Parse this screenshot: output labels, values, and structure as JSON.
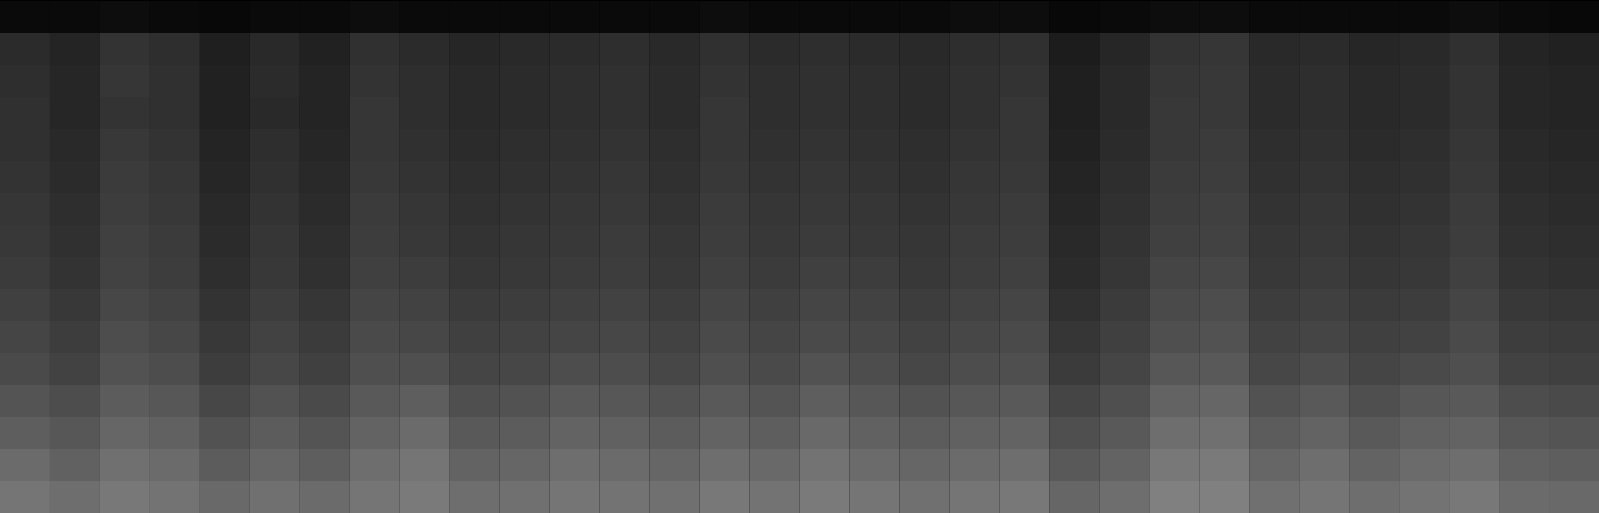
{
  "chart_data": {
    "type": "heatmap",
    "tick_labels": false,
    "zlim": [
      0,
      100
    ],
    "cells": [
      [
        4,
        4,
        5,
        4,
        3,
        4,
        4,
        5,
        4,
        4,
        4,
        4,
        4,
        4,
        5,
        4,
        4,
        4,
        4,
        5,
        5,
        3,
        4,
        5,
        5,
        4,
        4,
        4,
        4,
        5,
        4,
        3
      ],
      [
        17,
        14,
        20,
        18,
        12,
        16,
        13,
        19,
        17,
        15,
        16,
        17,
        18,
        16,
        19,
        17,
        18,
        17,
        16,
        18,
        19,
        11,
        15,
        20,
        21,
        16,
        17,
        15,
        16,
        19,
        14,
        13
      ],
      [
        18,
        15,
        21,
        19,
        13,
        17,
        14,
        20,
        18,
        16,
        17,
        18,
        19,
        17,
        20,
        18,
        19,
        18,
        17,
        19,
        20,
        12,
        16,
        21,
        22,
        17,
        18,
        16,
        17,
        20,
        15,
        14
      ],
      [
        19,
        15,
        20,
        19,
        13,
        16,
        14,
        21,
        18,
        16,
        17,
        18,
        19,
        17,
        21,
        18,
        19,
        18,
        17,
        19,
        21,
        12,
        16,
        22,
        22,
        17,
        18,
        16,
        17,
        20,
        15,
        14
      ],
      [
        19,
        16,
        22,
        20,
        14,
        18,
        15,
        21,
        19,
        17,
        18,
        19,
        20,
        18,
        21,
        19,
        20,
        19,
        18,
        20,
        21,
        13,
        17,
        22,
        23,
        18,
        19,
        17,
        18,
        21,
        16,
        15
      ],
      [
        20,
        17,
        23,
        21,
        15,
        19,
        16,
        22,
        20,
        18,
        19,
        20,
        21,
        19,
        22,
        20,
        21,
        20,
        19,
        21,
        22,
        14,
        18,
        23,
        24,
        19,
        20,
        18,
        19,
        22,
        17,
        16
      ],
      [
        21,
        18,
        24,
        22,
        16,
        20,
        17,
        23,
        21,
        19,
        20,
        21,
        22,
        20,
        23,
        21,
        22,
        21,
        20,
        22,
        23,
        15,
        19,
        24,
        25,
        20,
        21,
        19,
        20,
        23,
        18,
        17
      ],
      [
        22,
        19,
        25,
        23,
        17,
        21,
        18,
        24,
        22,
        20,
        21,
        22,
        23,
        21,
        24,
        22,
        23,
        22,
        21,
        23,
        24,
        16,
        20,
        25,
        26,
        21,
        22,
        20,
        21,
        24,
        19,
        18
      ],
      [
        23,
        20,
        26,
        24,
        18,
        22,
        19,
        25,
        24,
        21,
        22,
        23,
        24,
        22,
        25,
        23,
        25,
        24,
        22,
        24,
        25,
        17,
        21,
        27,
        28,
        22,
        23,
        21,
        22,
        25,
        20,
        19
      ],
      [
        25,
        22,
        28,
        26,
        20,
        24,
        21,
        27,
        26,
        23,
        24,
        25,
        26,
        24,
        27,
        25,
        27,
        26,
        24,
        26,
        27,
        19,
        23,
        29,
        30,
        24,
        25,
        23,
        24,
        27,
        22,
        21
      ],
      [
        27,
        24,
        30,
        28,
        22,
        26,
        23,
        29,
        28,
        25,
        26,
        27,
        28,
        26,
        29,
        27,
        29,
        28,
        26,
        28,
        29,
        21,
        25,
        31,
        32,
        26,
        27,
        25,
        26,
        29,
        24,
        23
      ],
      [
        29,
        26,
        32,
        30,
        24,
        28,
        25,
        31,
        31,
        27,
        28,
        30,
        30,
        28,
        31,
        29,
        32,
        30,
        28,
        30,
        31,
        23,
        27,
        34,
        35,
        28,
        30,
        27,
        29,
        31,
        26,
        25
      ],
      [
        33,
        30,
        36,
        34,
        28,
        32,
        29,
        35,
        37,
        31,
        32,
        35,
        34,
        32,
        35,
        33,
        37,
        34,
        32,
        34,
        35,
        27,
        31,
        39,
        40,
        32,
        35,
        31,
        34,
        35,
        30,
        29
      ],
      [
        37,
        34,
        40,
        38,
        32,
        36,
        33,
        39,
        42,
        35,
        36,
        39,
        38,
        36,
        39,
        37,
        41,
        38,
        36,
        38,
        39,
        31,
        35,
        43,
        44,
        36,
        39,
        35,
        38,
        39,
        34,
        33
      ],
      [
        42,
        38,
        44,
        42,
        36,
        40,
        37,
        43,
        46,
        39,
        40,
        43,
        42,
        40,
        43,
        41,
        45,
        42,
        40,
        42,
        43,
        35,
        39,
        47,
        48,
        40,
        43,
        39,
        42,
        43,
        38,
        37
      ],
      [
        46,
        43,
        47,
        45,
        41,
        44,
        42,
        46,
        48,
        43,
        44,
        46,
        45,
        44,
        47,
        45,
        48,
        46,
        44,
        46,
        47,
        40,
        43,
        50,
        50,
        44,
        46,
        43,
        45,
        47,
        42,
        41
      ]
    ]
  }
}
